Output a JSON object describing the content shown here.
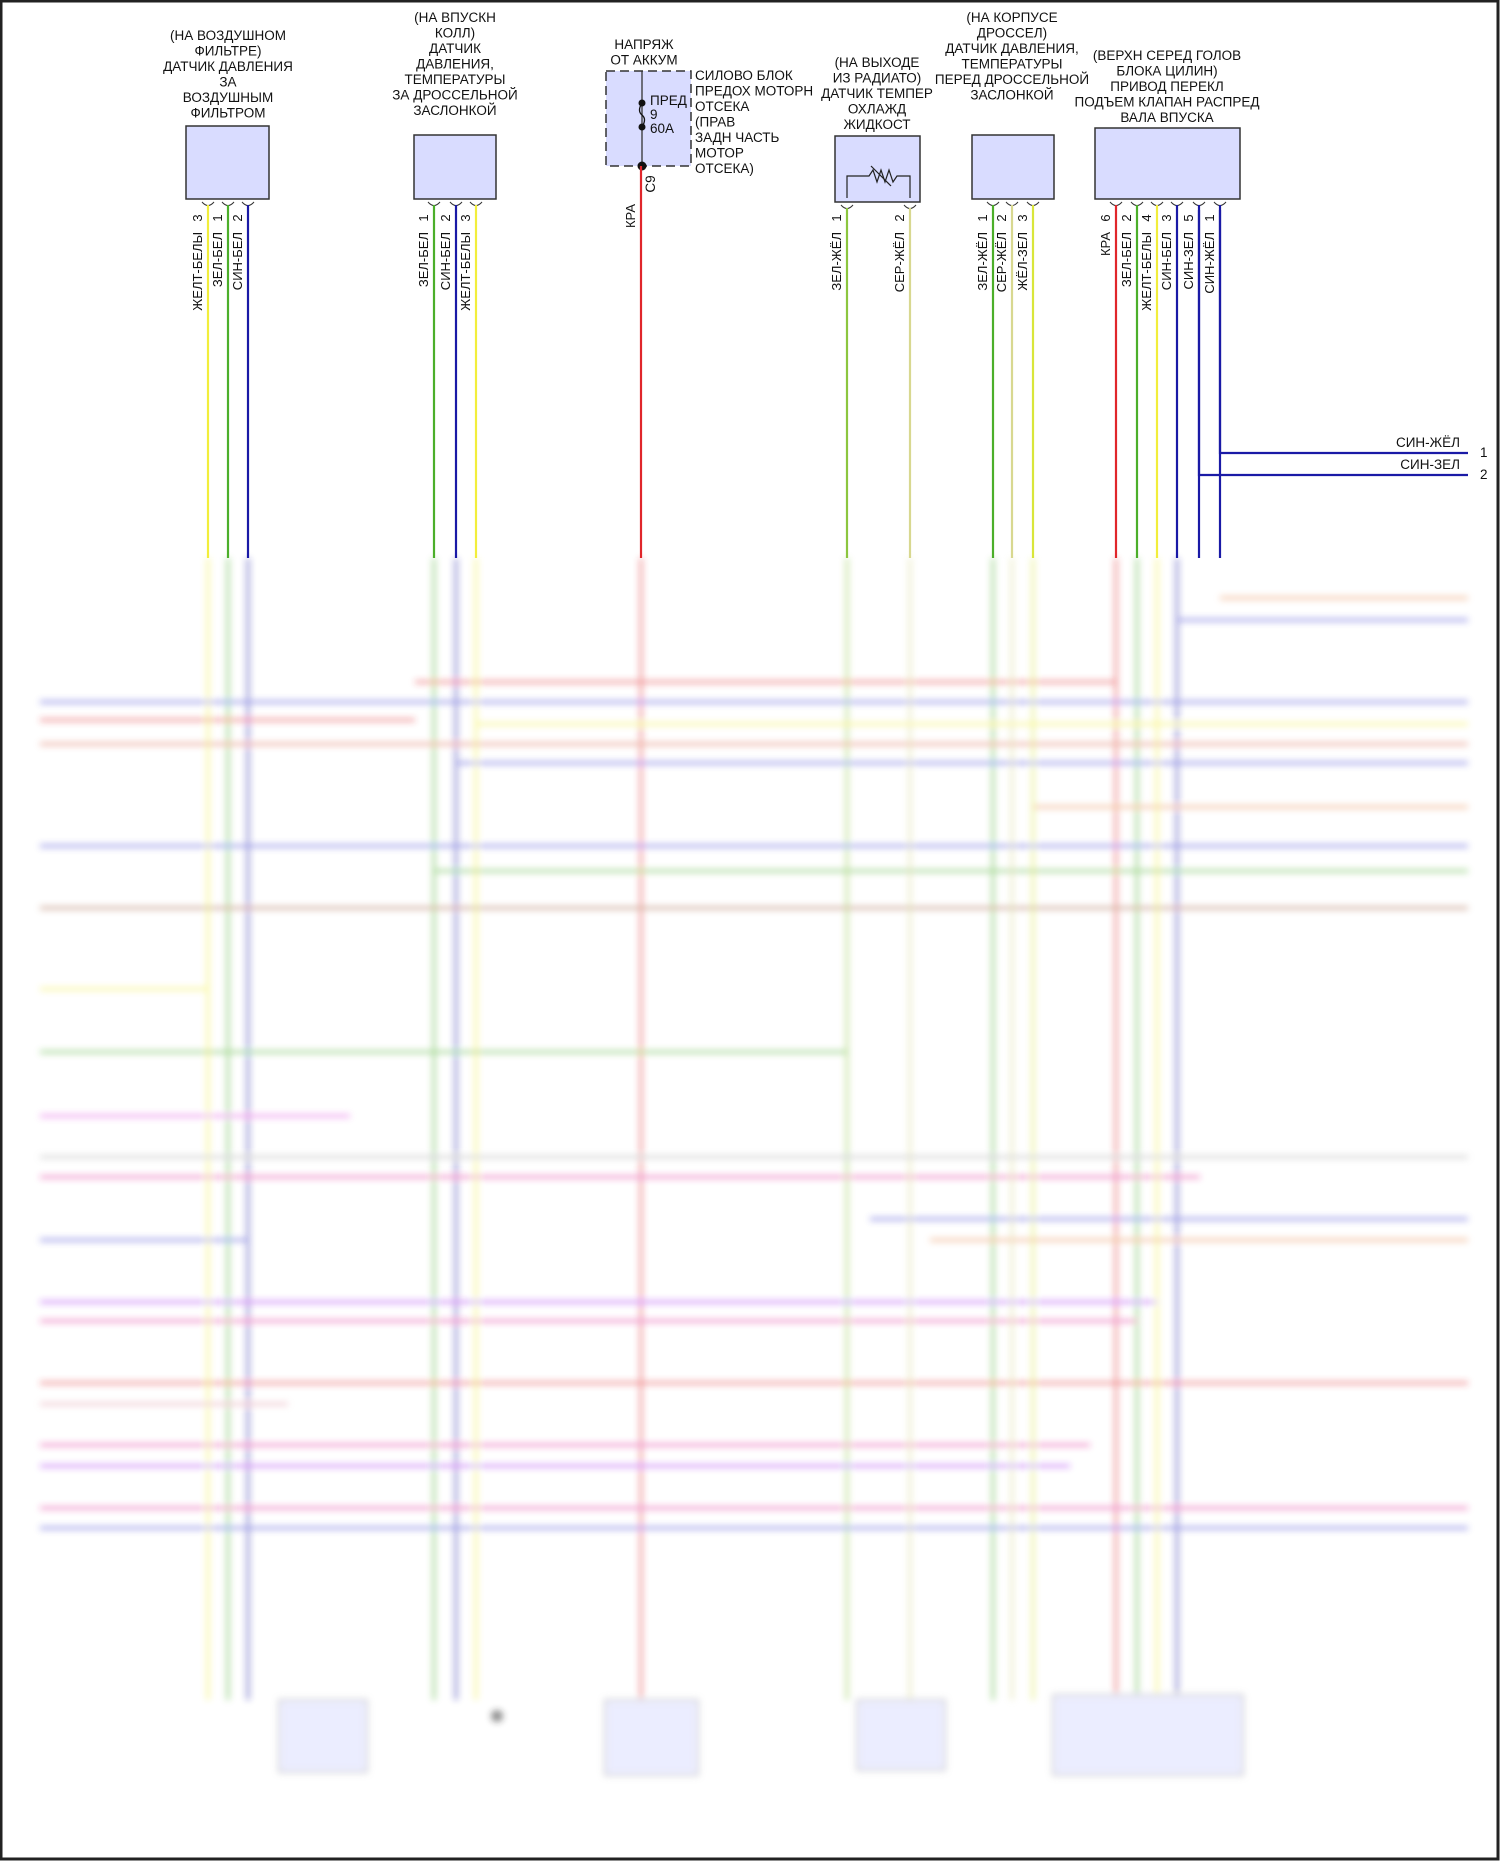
{
  "colors": {
    "connector_fill": "#d9dcff",
    "connector_stroke": "#333333",
    "red": "#e0262b",
    "yellow": "#f2ee3c",
    "green": "#4caf2a",
    "blue": "#1a1aa6",
    "green_yellow": "#8cc63f",
    "gray_yellow": "#d8d890"
  },
  "components": [
    {
      "id": "air-filter-pressure-sensor",
      "label_lines": [
        "(НА ВОЗДУШНОМ",
        "ФИЛЬТРЕ)",
        "ДАТЧИК ДАВЛЕНИЯ",
        "ЗА",
        "ВОЗДУШНЫМ",
        "ФИЛЬТРОМ"
      ],
      "pins": [
        {
          "num": "3",
          "wire": "ЖЕЛТ-БЕЛЫ",
          "color": "#f2ee3c"
        },
        {
          "num": "1",
          "wire": "ЗЕЛ-БЕЛ",
          "color": "#4caf2a"
        },
        {
          "num": "2",
          "wire": "СИН-БЕЛ",
          "color": "#1a1aa6"
        }
      ]
    },
    {
      "id": "intake-manifold-pressure-temp-sensor",
      "label_lines": [
        "(НА ВПУСКН",
        "КОЛЛ)",
        "ДАТЧИК",
        "ДАВЛЕНИЯ,",
        "ТЕМПЕРАТУРЫ",
        "ЗА ДРОССЕЛЬНОЙ",
        "ЗАСЛОНКОЙ"
      ],
      "pins": [
        {
          "num": "1",
          "wire": "ЗЕЛ-БЕЛ",
          "color": "#4caf2a"
        },
        {
          "num": "2",
          "wire": "СИН-БЕЛ",
          "color": "#1a1aa6"
        },
        {
          "num": "3",
          "wire": "ЖЕЛТ-БЕЛЫ",
          "color": "#f2ee3c"
        }
      ]
    },
    {
      "id": "fuse-box",
      "label_lines": [
        "НАПРЯЖ",
        "ОТ АККУМ"
      ],
      "side_lines": [
        "СИЛОВО БЛОК",
        "ПРЕДОХ МОТОРН",
        "ОТСЕКА",
        "(ПРАВ",
        "ЗАДН ЧАСТЬ",
        "МОТОР",
        "ОТСЕКА)"
      ],
      "fuse_lines": [
        "ПРЕД",
        "9",
        "60А"
      ],
      "connector": "C9",
      "pins": [
        {
          "num": "",
          "wire": "КРА",
          "color": "#e0262b"
        }
      ]
    },
    {
      "id": "coolant-temp-sensor",
      "label_lines": [
        "(НА ВЫХОДЕ",
        "ИЗ РАДИАТО)",
        "ДАТЧИК ТЕМПЕР",
        "ОХЛАЖД",
        "ЖИДКОСТ"
      ],
      "pins": [
        {
          "num": "1",
          "wire": "ЗЕЛ-ЖЁЛ",
          "color": "#8cc63f"
        },
        {
          "num": "2",
          "wire": "СЕР-ЖЁЛ",
          "color": "#d8d890"
        }
      ]
    },
    {
      "id": "throttle-body-pressure-temp-sensor",
      "label_lines": [
        "(НА КОРПУСЕ",
        "ДРОССЕЛ)",
        "ДАТЧИК ДАВЛЕНИЯ,",
        "ТЕМПЕРАТУРЫ",
        "ПЕРЕД ДРОССЕЛЬНОЙ",
        "ЗАСЛОНКОЙ"
      ],
      "pins": [
        {
          "num": "1",
          "wire": "ЗЕЛ-ЖЁЛ",
          "color": "#4caf2a"
        },
        {
          "num": "2",
          "wire": "СЕР-ЖЁЛ",
          "color": "#d8d890"
        },
        {
          "num": "3",
          "wire": "ЖЁЛ-ЗЕЛ",
          "color": "#d9e63a"
        }
      ]
    },
    {
      "id": "intake-camshaft-valve-lift-actuator",
      "label_lines": [
        "(ВЕРХН СЕРЕД ГОЛОВ",
        "БЛОКА ЦИЛИН)",
        "ПРИВОД ПЕРЕКЛ",
        "ПОДЪЕМ КЛАПАН РАСПРЕД",
        "ВАЛА ВПУСКА"
      ],
      "pins": [
        {
          "num": "6",
          "wire": "КРА",
          "color": "#e0262b"
        },
        {
          "num": "2",
          "wire": "ЗЕЛ-БЕЛ",
          "color": "#4caf2a"
        },
        {
          "num": "4",
          "wire": "ЖЕЛТ-БЕЛЫ",
          "color": "#f2ee3c"
        },
        {
          "num": "3",
          "wire": "СИН-БЕЛ",
          "color": "#1a1aa6"
        },
        {
          "num": "5",
          "wire": "СИН-ЗЕЛ",
          "color": "#1a1aa6"
        },
        {
          "num": "1",
          "wire": "СИН-ЖЁЛ",
          "color": "#1a1aa6"
        }
      ]
    }
  ],
  "right_connector": [
    {
      "pin": "1",
      "wire": "СИН-ЖЁЛ"
    },
    {
      "pin": "2",
      "wire": "СИН-ЗЕЛ"
    }
  ]
}
